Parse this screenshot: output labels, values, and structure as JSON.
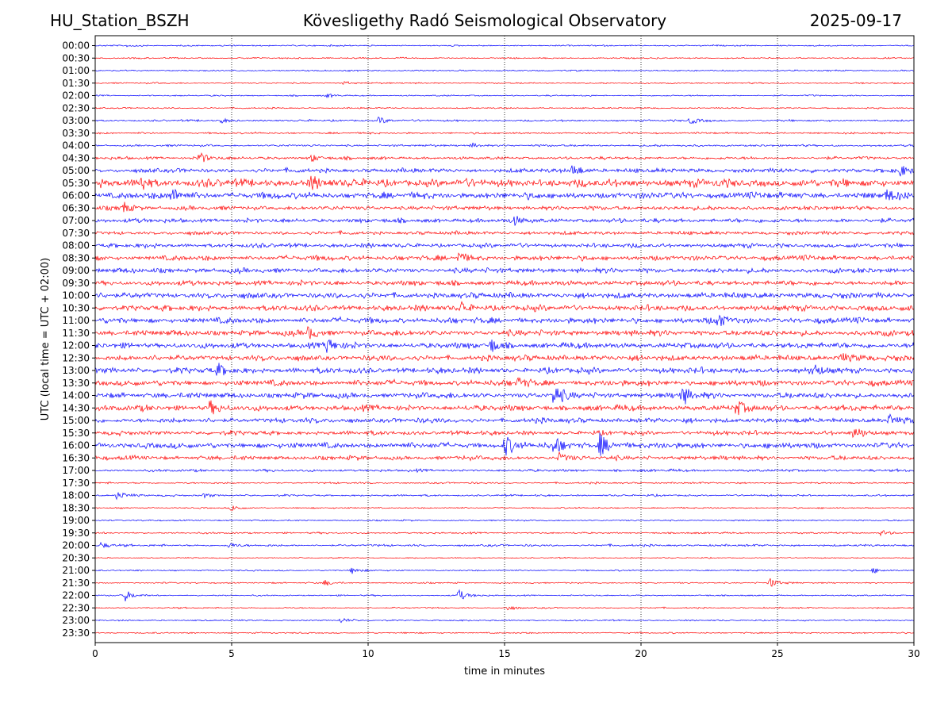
{
  "header": {
    "station": "HU_Station_BSZH",
    "title": "Kövesligethy Radó Seismological Observatory",
    "date": "2025-09-17"
  },
  "chart_data": {
    "type": "line",
    "subtype": "helicorder",
    "xlabel": "time in minutes",
    "ylabel": "UTC (local time = UTC + 02:00)",
    "xlim": [
      0,
      30
    ],
    "xticks": [
      "0",
      "5",
      "10",
      "15",
      "20",
      "25",
      "30"
    ],
    "grid": "vertical dotted at 5-minute intervals",
    "colors": [
      "#0000ff",
      "#ff0000"
    ],
    "row_labels": [
      "00:00",
      "00:30",
      "01:00",
      "01:30",
      "02:00",
      "02:30",
      "03:00",
      "03:30",
      "04:00",
      "04:30",
      "05:00",
      "05:30",
      "06:00",
      "06:30",
      "07:00",
      "07:30",
      "08:00",
      "08:30",
      "09:00",
      "09:30",
      "10:00",
      "10:30",
      "11:00",
      "11:30",
      "12:00",
      "12:30",
      "13:00",
      "13:30",
      "14:00",
      "14:30",
      "15:00",
      "15:30",
      "16:00",
      "16:30",
      "17:00",
      "17:30",
      "18:00",
      "18:30",
      "19:00",
      "19:30",
      "20:00",
      "20:30",
      "21:00",
      "21:30",
      "22:00",
      "22:30",
      "23:00",
      "23:30"
    ],
    "noise_level": [
      1,
      1,
      1,
      1,
      1,
      1,
      1.3,
      1.3,
      1.5,
      2,
      3,
      5.5,
      4.5,
      3,
      3,
      2.5,
      3,
      3.5,
      3.5,
      3.5,
      4,
      4,
      4,
      4,
      4,
      4,
      4,
      4,
      4,
      4,
      3.5,
      3,
      4,
      3,
      1.8,
      1.2,
      1.3,
      1,
      1,
      1.2,
      1.5,
      0.8,
      1,
      1,
      1,
      1,
      1,
      1
    ],
    "events": [
      {
        "row": 0,
        "minute": 1.2,
        "amp": 2
      },
      {
        "row": 3,
        "minute": 9.1,
        "amp": 2
      },
      {
        "row": 4,
        "minute": 8.5,
        "amp": 2
      },
      {
        "row": 6,
        "minute": 4.6,
        "amp": 3
      },
      {
        "row": 6,
        "minute": 10.4,
        "amp": 5
      },
      {
        "row": 6,
        "minute": 21.8,
        "amp": 5
      },
      {
        "row": 8,
        "minute": 13.8,
        "amp": 3
      },
      {
        "row": 9,
        "minute": 3.8,
        "amp": 8
      },
      {
        "row": 9,
        "minute": 7.9,
        "amp": 5
      },
      {
        "row": 10,
        "minute": 17.5,
        "amp": 9
      },
      {
        "row": 10,
        "minute": 29.5,
        "amp": 7
      },
      {
        "row": 11,
        "minute": 1.7,
        "amp": 10
      },
      {
        "row": 11,
        "minute": 7.9,
        "amp": 8
      },
      {
        "row": 12,
        "minute": 2.8,
        "amp": 10
      },
      {
        "row": 12,
        "minute": 29.0,
        "amp": 8
      },
      {
        "row": 13,
        "minute": 1.0,
        "amp": 8
      },
      {
        "row": 14,
        "minute": 15.3,
        "amp": 6
      },
      {
        "row": 17,
        "minute": 13.3,
        "amp": 7
      },
      {
        "row": 21,
        "minute": 13.4,
        "amp": 8
      },
      {
        "row": 22,
        "minute": 22.8,
        "amp": 9
      },
      {
        "row": 23,
        "minute": 7.8,
        "amp": 8
      },
      {
        "row": 24,
        "minute": 8.5,
        "amp": 10
      },
      {
        "row": 24,
        "minute": 14.5,
        "amp": 8
      },
      {
        "row": 25,
        "minute": 27.3,
        "amp": 7
      },
      {
        "row": 26,
        "minute": 4.5,
        "amp": 7
      },
      {
        "row": 26,
        "minute": 26.3,
        "amp": 8
      },
      {
        "row": 27,
        "minute": 15.5,
        "amp": 7
      },
      {
        "row": 28,
        "minute": 16.8,
        "amp": 14
      },
      {
        "row": 28,
        "minute": 21.5,
        "amp": 12
      },
      {
        "row": 29,
        "minute": 4.2,
        "amp": 8
      },
      {
        "row": 29,
        "minute": 23.5,
        "amp": 9
      },
      {
        "row": 30,
        "minute": 29.1,
        "amp": 7
      },
      {
        "row": 31,
        "minute": 27.8,
        "amp": 7
      },
      {
        "row": 32,
        "minute": 15.0,
        "amp": 14
      },
      {
        "row": 32,
        "minute": 16.8,
        "amp": 12
      },
      {
        "row": 32,
        "minute": 18.5,
        "amp": 16
      },
      {
        "row": 33,
        "minute": 17.0,
        "amp": 6
      },
      {
        "row": 36,
        "minute": 0.8,
        "amp": 6
      },
      {
        "row": 36,
        "minute": 4.0,
        "amp": 3
      },
      {
        "row": 37,
        "minute": 5.0,
        "amp": 4
      },
      {
        "row": 39,
        "minute": 28.8,
        "amp": 4
      },
      {
        "row": 40,
        "minute": 0.2,
        "amp": 4
      },
      {
        "row": 40,
        "minute": 4.9,
        "amp": 3
      },
      {
        "row": 42,
        "minute": 9.4,
        "amp": 4
      },
      {
        "row": 42,
        "minute": 28.5,
        "amp": 3
      },
      {
        "row": 43,
        "minute": 24.7,
        "amp": 7
      },
      {
        "row": 43,
        "minute": 8.4,
        "amp": 4
      },
      {
        "row": 44,
        "minute": 1.1,
        "amp": 7
      },
      {
        "row": 44,
        "minute": 13.3,
        "amp": 8
      },
      {
        "row": 46,
        "minute": 9.0,
        "amp": 3
      },
      {
        "row": 45,
        "minute": 15.1,
        "amp": 3
      }
    ]
  }
}
